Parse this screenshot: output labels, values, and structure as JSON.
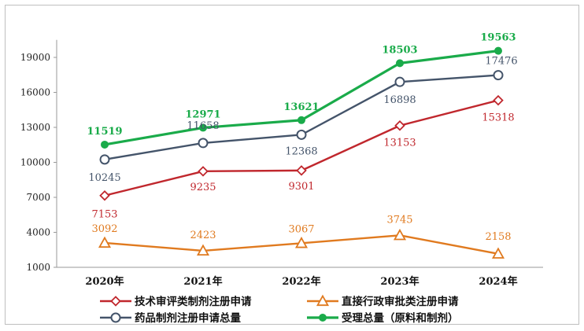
{
  "chart_data": {
    "type": "line",
    "categories": [
      "2020年",
      "2021年",
      "2022年",
      "2023年",
      "2024年"
    ],
    "ylim": [
      1000,
      20500
    ],
    "yticks": [
      1000,
      4000,
      7000,
      10000,
      13000,
      16000,
      19000
    ],
    "grid": false,
    "legend_position": "bottom",
    "series": [
      {
        "name": "技术审评类制剂注册申请",
        "values": [
          7153,
          9235,
          9301,
          13153,
          15318
        ],
        "color": "#c0272d",
        "marker": "diamond-open",
        "label_color": "#c0272d",
        "label_bold": false
      },
      {
        "name": "直接行政审批类注册申请",
        "values": [
          3092,
          2423,
          3067,
          3745,
          2158
        ],
        "color": "#e07a1f",
        "marker": "triangle-open",
        "label_color": "#e07a1f",
        "label_bold": false
      },
      {
        "name": "药品制剂注册申请总量",
        "values": [
          10245,
          11658,
          12368,
          16898,
          17476
        ],
        "color": "#44546a",
        "marker": "circle-open",
        "label_color": "#44546a",
        "label_bold": false
      },
      {
        "name": "受理总量（原料和制剂）",
        "values": [
          11519,
          12971,
          13621,
          18503,
          19563
        ],
        "color": "#1aab4a",
        "marker": "circle-filled",
        "label_color": "#1aab4a",
        "label_bold": true
      }
    ]
  }
}
